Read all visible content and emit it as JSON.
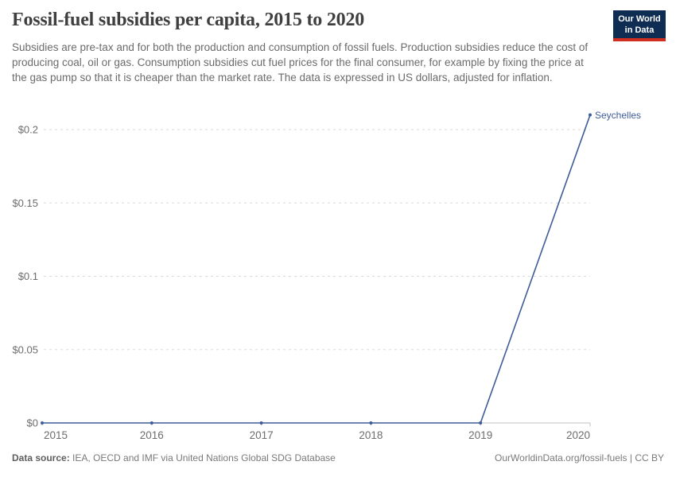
{
  "header": {
    "title": "Fossil-fuel subsidies per capita, 2015 to 2020",
    "subtitle": "Subsidies are pre-tax and for both the production and consumption of fossil fuels. Production subsidies reduce the cost of producing coal, oil or gas. Consumption subsidies cut fuel prices for the final consumer, for example by fixing the price at the gas pump so that it is cheaper than the market rate. The data is expressed in US dollars, adjusted for inflation."
  },
  "logo": {
    "line1": "Our World",
    "line2": "in Data",
    "bg_color": "#0f2d52",
    "accent_color": "#cf2d20"
  },
  "chart_data": {
    "type": "line",
    "title": "Fossil-fuel subsidies per capita, 2015 to 2020",
    "x": [
      2015,
      2016,
      2017,
      2018,
      2019,
      2020
    ],
    "x_tick_labels": [
      "2015",
      "2016",
      "2017",
      "2018",
      "2019",
      "2020"
    ],
    "series": [
      {
        "name": "Seychelles",
        "values": [
          0,
          0,
          0,
          0,
          0,
          0.21
        ],
        "color": "#3e5c98"
      }
    ],
    "y_ticks": [
      {
        "value": 0,
        "label": "$0"
      },
      {
        "value": 0.05,
        "label": "$0.05"
      },
      {
        "value": 0.1,
        "label": "$0.1"
      },
      {
        "value": 0.15,
        "label": "$0.15"
      },
      {
        "value": 0.2,
        "label": "$0.2"
      }
    ],
    "xlim": [
      2015,
      2020
    ],
    "ylim": [
      0,
      0.21
    ],
    "grid": "horizontal-dashed",
    "legend_position": "line-end-label",
    "colors": {
      "gridline": "#dadada",
      "axis": "#c2c2c2",
      "tick_text": "#6d6d6d"
    }
  },
  "footer": {
    "source_label": "Data source:",
    "source_text": " IEA, OECD and IMF via United Nations Global SDG Database",
    "credit": "OurWorldinData.org/fossil-fuels | CC BY"
  }
}
